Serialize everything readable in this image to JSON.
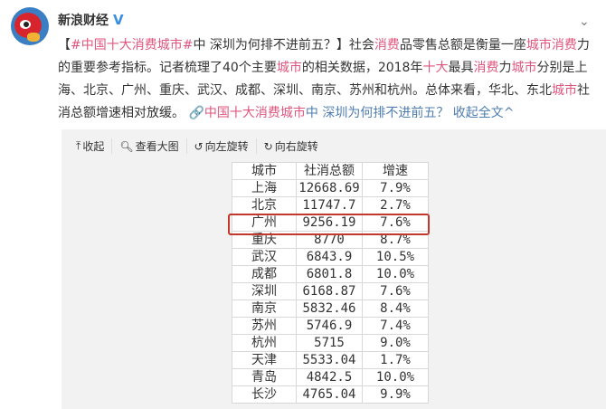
{
  "user": {
    "name": "新浪财经",
    "verified": "V"
  },
  "post": {
    "segments": [
      {
        "t": "【",
        "c": ""
      },
      {
        "t": "#中国十大消费城市#",
        "c": "pink"
      },
      {
        "t": "中 深圳为何排不进前五？】社会",
        "c": ""
      },
      {
        "t": "消费",
        "c": "pink"
      },
      {
        "t": "品零售总额是衡量一座",
        "c": ""
      },
      {
        "t": "城市消费",
        "c": "pink"
      },
      {
        "t": "力的重要参考指标。记者梳理了40个主要",
        "c": ""
      },
      {
        "t": "城市",
        "c": "pink"
      },
      {
        "t": "的相关数据，2018年",
        "c": ""
      },
      {
        "t": "十大",
        "c": "pink"
      },
      {
        "t": "最具",
        "c": ""
      },
      {
        "t": "消费",
        "c": "pink"
      },
      {
        "t": "力",
        "c": ""
      },
      {
        "t": "城市",
        "c": "pink"
      },
      {
        "t": "分别是上海、北京、广州、重庆、武汉、成都、深圳、南京、苏州和杭州。总体来看，华北、东北",
        "c": ""
      },
      {
        "t": "城市",
        "c": "pink"
      },
      {
        "t": "社消总额增速相对放缓。",
        "c": ""
      }
    ],
    "link_hashtag": "中国十大消费城市",
    "link_rest": "中 深圳为何排不进前五？",
    "collapse": "收起全文"
  },
  "toolbar": {
    "collapse": "收起",
    "view_large": "查看大图",
    "rotate_left": "向左旋转",
    "rotate_right": "向右旋转"
  },
  "table": {
    "headers": [
      "城市",
      "社消总额",
      "增速"
    ],
    "rows": [
      [
        "上海",
        "12668.69",
        "7.9%"
      ],
      [
        "北京",
        "11747.7",
        "2.7%"
      ],
      [
        "广州",
        "9256.19",
        "7.6%"
      ],
      [
        "重庆",
        "8770",
        "8.7%"
      ],
      [
        "武汉",
        "6843.9",
        "10.5%"
      ],
      [
        "成都",
        "6801.8",
        "10.0%"
      ],
      [
        "深圳",
        "6168.87",
        "7.6%"
      ],
      [
        "南京",
        "5832.46",
        "8.4%"
      ],
      [
        "苏州",
        "5746.9",
        "7.4%"
      ],
      [
        "杭州",
        "5715",
        "9.0%"
      ],
      [
        "天津",
        "5533.04",
        "1.7%"
      ],
      [
        "青岛",
        "4842.5",
        "10.0%"
      ],
      [
        "长沙",
        "4765.04",
        "9.9%"
      ]
    ],
    "highlighted_city": "广州"
  },
  "colors": {
    "hashtag": "#e0567e",
    "link": "#4f7db0",
    "highlight": "#c0392b"
  }
}
